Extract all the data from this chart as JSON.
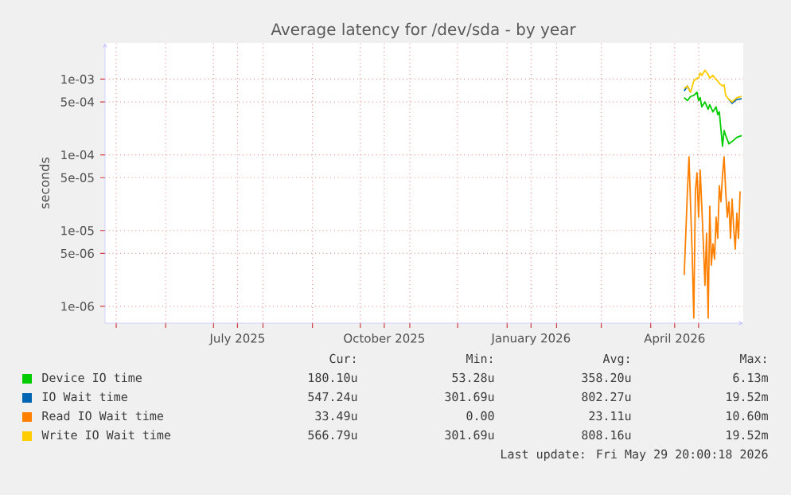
{
  "chart_data": {
    "type": "line",
    "title": "Average latency for /dev/sda - by year",
    "ylabel": "seconds",
    "xlim": [
      "2025-04-24",
      "2026-05-29"
    ],
    "xticks": [
      {
        "value": "2025-05-01",
        "label": null
      },
      {
        "value": "2025-06-01",
        "label": null
      },
      {
        "value": "2025-07-01",
        "label": null
      },
      {
        "value": "2025-08-01",
        "label": null
      },
      {
        "value": "2025-09-01",
        "label": null
      },
      {
        "value": "2025-10-01",
        "label": null
      },
      {
        "value": "2025-11-01",
        "label": null
      },
      {
        "value": "2025-12-01",
        "label": null
      },
      {
        "value": "2026-01-01",
        "label": null
      },
      {
        "value": "2026-02-01",
        "label": null
      },
      {
        "value": "2026-03-01",
        "label": null
      },
      {
        "value": "2026-04-01",
        "label": null
      },
      {
        "value": "2026-05-01",
        "label": null
      },
      {
        "value": "2025-07-16",
        "label": "July 2025"
      },
      {
        "value": "2025-10-16",
        "label": "October 2025"
      },
      {
        "value": "2026-01-16",
        "label": "January 2026"
      },
      {
        "value": "2026-04-16",
        "label": "April 2026"
      }
    ],
    "ylim": [
      6e-07,
      0.003
    ],
    "log": true,
    "yticks": [
      {
        "value": 0.001,
        "label": "1e-03"
      },
      {
        "value": 0.0005,
        "label": "5e-04"
      },
      {
        "value": 0.0001,
        "label": "1e-04"
      },
      {
        "value": 5e-05,
        "label": "5e-05"
      },
      {
        "value": 1e-05,
        "label": "1e-05"
      },
      {
        "value": 5e-06,
        "label": "5e-06"
      },
      {
        "value": 1e-06,
        "label": "1e-06"
      }
    ],
    "grid": true,
    "legend": "bottom",
    "series": [
      {
        "name": "Device IO time",
        "color": "#00cc00",
        "x": [
          "2026-04-22",
          "2026-04-24",
          "2026-04-26",
          "2026-04-28",
          "2026-04-30",
          "2026-05-01",
          "2026-05-02",
          "2026-05-03",
          "2026-05-05",
          "2026-05-07",
          "2026-05-08",
          "2026-05-10",
          "2026-05-12",
          "2026-05-13",
          "2026-05-14",
          "2026-05-16",
          "2026-05-17",
          "2026-05-18",
          "2026-05-20",
          "2026-05-22",
          "2026-05-25",
          "2026-05-28"
        ],
        "values": [
          0.00057,
          0.00052,
          0.00059,
          0.00061,
          0.00067,
          0.00052,
          0.00057,
          0.00043,
          0.0005,
          0.0004,
          0.00046,
          0.00037,
          0.00043,
          0.00034,
          0.00037,
          0.00013,
          0.00021,
          0.00018,
          0.00014,
          0.00015,
          0.00017,
          0.00018
        ]
      },
      {
        "name": "IO Wait time",
        "color": "#0066b3",
        "x": [
          "2026-04-22",
          "2026-04-24",
          "2026-04-26",
          "2026-04-28",
          "2026-04-30",
          "2026-05-01",
          "2026-05-02",
          "2026-05-03",
          "2026-05-05",
          "2026-05-07",
          "2026-05-08",
          "2026-05-10",
          "2026-05-12",
          "2026-05-13",
          "2026-05-14",
          "2026-05-16",
          "2026-05-17",
          "2026-05-18",
          "2026-05-20",
          "2026-05-22",
          "2026-05-25",
          "2026-05-28"
        ],
        "values": [
          0.0007,
          0.00081,
          0.00067,
          null,
          null,
          null,
          null,
          null,
          null,
          null,
          null,
          null,
          null,
          null,
          null,
          null,
          null,
          null,
          0.00054,
          0.00048,
          0.00054,
          0.00055
        ]
      },
      {
        "name": "Read IO Wait time",
        "color": "#ff8000",
        "x": [
          "2026-04-22",
          "2026-04-23",
          "2026-04-24",
          "2026-04-25",
          "2026-04-26",
          "2026-04-27",
          "2026-04-28",
          "2026-04-29",
          "2026-04-30",
          "2026-05-01",
          "2026-05-02",
          "2026-05-03",
          "2026-05-04",
          "2026-05-05",
          "2026-05-06",
          "2026-05-07",
          "2026-05-08",
          "2026-05-09",
          "2026-05-10",
          "2026-05-11",
          "2026-05-12",
          "2026-05-13",
          "2026-05-14",
          "2026-05-15",
          "2026-05-16",
          "2026-05-17",
          "2026-05-18",
          "2026-05-19",
          "2026-05-20",
          "2026-05-21",
          "2026-05-22",
          "2026-05-23",
          "2026-05-24",
          "2026-05-25",
          "2026-05-26",
          "2026-05-27"
        ],
        "values": [
          2.6e-06,
          9.2e-06,
          3.3e-05,
          9.4e-05,
          2.1e-05,
          4.9e-06,
          7e-07,
          3.3e-05,
          5.8e-05,
          1.5e-05,
          6.3e-05,
          2.1e-05,
          6.7e-06,
          1.9e-06,
          9.2e-06,
          7e-07,
          2.1e-05,
          3.5e-06,
          6.7e-06,
          4.2e-06,
          1.5e-05,
          7.9e-06,
          3.9e-05,
          2.4e-05,
          5.4e-05,
          9.4e-05,
          3.3e-05,
          1.5e-05,
          2.4e-05,
          7.9e-06,
          2.6e-05,
          1.1e-05,
          5.7e-06,
          1.7e-05,
          7.9e-06,
          3.3e-05
        ]
      },
      {
        "name": "Write IO Wait time",
        "color": "#ffcc00",
        "x": [
          "2026-04-22",
          "2026-04-24",
          "2026-04-26",
          "2026-04-28",
          "2026-04-30",
          "2026-05-01",
          "2026-05-02",
          "2026-05-03",
          "2026-05-05",
          "2026-05-07",
          "2026-05-08",
          "2026-05-10",
          "2026-05-12",
          "2026-05-13",
          "2026-05-14",
          "2026-05-16",
          "2026-05-17",
          "2026-05-18",
          "2026-05-20",
          "2026-05-22",
          "2026-05-25",
          "2026-05-28"
        ],
        "values": [
          0.00075,
          0.00081,
          0.00067,
          0.00095,
          0.00103,
          0.00103,
          0.00121,
          0.00112,
          0.00131,
          0.00115,
          0.00103,
          0.00112,
          0.00098,
          0.00095,
          0.00088,
          0.00081,
          0.00084,
          0.00061,
          0.00054,
          0.0005,
          0.00057,
          0.00059
        ]
      }
    ],
    "annotations": [
      "Cur:",
      "Min:",
      "Avg:",
      "Max:",
      "180.10u",
      "53.28u",
      "358.20u",
      "6.13m",
      "547.24u",
      "301.69u",
      "802.27u",
      "19.52m",
      "33.49u",
      "0.00",
      "23.11u",
      "10.60m",
      "566.79u",
      "301.69u",
      "808.16u",
      "19.52m",
      "Last update: Fri May 29 20:00:18 2026"
    ]
  }
}
